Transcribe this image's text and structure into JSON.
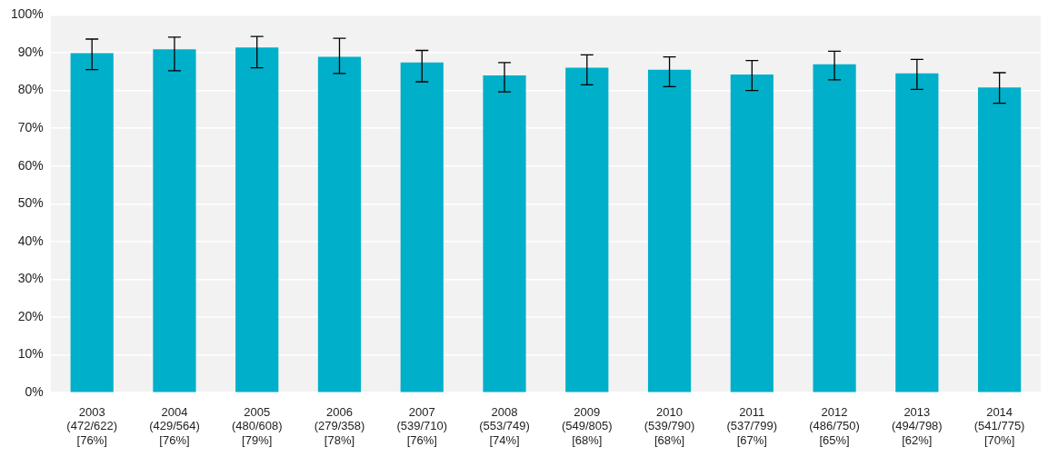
{
  "chart_data": {
    "type": "bar",
    "categories": [
      [
        "2003",
        "(472/622)",
        "[76%]"
      ],
      [
        "2004",
        "(429/564)",
        "[76%]"
      ],
      [
        "2005",
        "(480/608)",
        "[79%]"
      ],
      [
        "2006",
        "(279/358)",
        "[78%]"
      ],
      [
        "2007",
        "(539/710)",
        "[76%]"
      ],
      [
        "2008",
        "(553/749)",
        "[74%]"
      ],
      [
        "2009",
        "(549/805)",
        "[68%]"
      ],
      [
        "2010",
        "(539/790)",
        "[68%]"
      ],
      [
        "2011",
        "(537/799)",
        "[67%]"
      ],
      [
        "2012",
        "(486/750)",
        "[65%]"
      ],
      [
        "2013",
        "(494/798)",
        "[62%]"
      ],
      [
        "2014",
        "(541/775)",
        "[70%]"
      ]
    ],
    "values": [
      89.9,
      90.9,
      91.4,
      88.9,
      87.4,
      84.0,
      86.0,
      85.5,
      84.2,
      86.9,
      84.5,
      80.8
    ],
    "error_low": [
      85.5,
      85.2,
      86.0,
      84.5,
      82.3,
      79.6,
      81.5,
      81.0,
      80.0,
      82.8,
      80.3,
      76.6
    ],
    "error_high": [
      93.6,
      94.1,
      94.3,
      93.8,
      90.6,
      87.4,
      89.4,
      88.9,
      87.9,
      90.4,
      88.2,
      84.7
    ],
    "color": "#00afc9",
    "ylim": [
      0,
      100
    ],
    "yticks": [
      {
        "value": 0,
        "label": "0%"
      },
      {
        "value": 10,
        "label": "10%"
      },
      {
        "value": 20,
        "label": "20%"
      },
      {
        "value": 30,
        "label": "30%"
      },
      {
        "value": 40,
        "label": "40%"
      },
      {
        "value": 50,
        "label": "50%"
      },
      {
        "value": 60,
        "label": "60%"
      },
      {
        "value": 70,
        "label": "70%"
      },
      {
        "value": 80,
        "label": "80%"
      },
      {
        "value": 90,
        "label": "90%"
      },
      {
        "value": 100,
        "label": "100%"
      }
    ],
    "grid": true
  }
}
